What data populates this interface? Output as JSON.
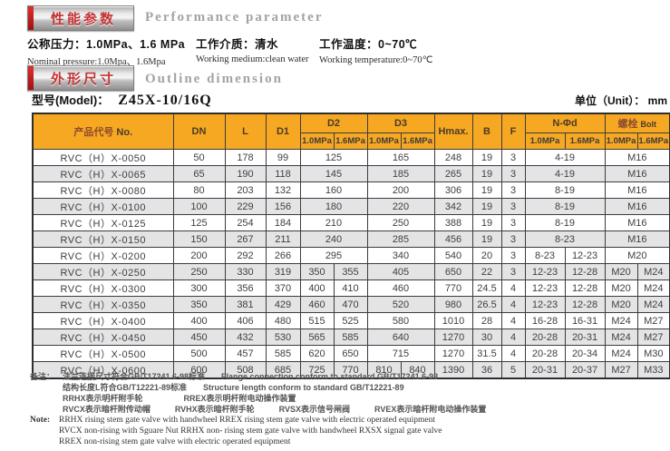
{
  "performance": {
    "badge_cn": "性能参数",
    "title_en": "Performance parameter",
    "params": [
      {
        "cn": "公称压力：1.0MPa、1.6 MPa",
        "en": "Nominal pressure:1.0Mpa、1.6Mpa"
      },
      {
        "cn": "工作介质：清水",
        "en": "Working medium:clean water"
      },
      {
        "cn": "工作温度：0~70℃",
        "en": "Working temperature:0~70℃"
      }
    ]
  },
  "outline": {
    "badge_cn": "外形尺寸",
    "title_en": "Outline dimension",
    "model_label": "型号(Model)：",
    "model_value": "Z45X-10/16Q",
    "unit_label": "单位（Unit）： mm"
  },
  "table": {
    "headers": {
      "no_cn": "产品代号",
      "no_en": "No.",
      "dn": "DN",
      "l": "L",
      "d1": "D1",
      "d2": "D2",
      "d3": "D3",
      "hmax": "Hmax.",
      "b": "B",
      "f": "F",
      "nd": "N-Φd",
      "bolt_cn": "螺栓",
      "bolt_en": "Bolt",
      "p10": "1.0MPa",
      "p16": "1.6MPa"
    },
    "rows": [
      {
        "no": "RVC（H）X-0050",
        "dn": "50",
        "l": "178",
        "d1": "99",
        "d2": [
          "125"
        ],
        "d3": [
          "165"
        ],
        "hmax": "248",
        "b": "19",
        "f": "3",
        "nd": [
          "4-19"
        ],
        "bolt": [
          "M16"
        ]
      },
      {
        "no": "RVC（H）X-0065",
        "dn": "65",
        "l": "190",
        "d1": "118",
        "d2": [
          "145"
        ],
        "d3": [
          "185"
        ],
        "hmax": "265",
        "b": "19",
        "f": "3",
        "nd": [
          "4-19"
        ],
        "bolt": [
          "M16"
        ]
      },
      {
        "no": "RVC（H）X-0080",
        "dn": "80",
        "l": "203",
        "d1": "132",
        "d2": [
          "160"
        ],
        "d3": [
          "200"
        ],
        "hmax": "306",
        "b": "19",
        "f": "3",
        "nd": [
          "8-19"
        ],
        "bolt": [
          "M16"
        ]
      },
      {
        "no": "RVC（H）X-0100",
        "dn": "100",
        "l": "229",
        "d1": "156",
        "d2": [
          "180"
        ],
        "d3": [
          "220"
        ],
        "hmax": "342",
        "b": "19",
        "f": "3",
        "nd": [
          "8-19"
        ],
        "bolt": [
          "M16"
        ]
      },
      {
        "no": "RVC（H）X-0125",
        "dn": "125",
        "l": "254",
        "d1": "184",
        "d2": [
          "210"
        ],
        "d3": [
          "250"
        ],
        "hmax": "388",
        "b": "19",
        "f": "3",
        "nd": [
          "8-19"
        ],
        "bolt": [
          "M16"
        ]
      },
      {
        "no": "RVC（H）X-0150",
        "dn": "150",
        "l": "267",
        "d1": "211",
        "d2": [
          "240"
        ],
        "d3": [
          "285"
        ],
        "hmax": "456",
        "b": "19",
        "f": "3",
        "nd": [
          "8-23"
        ],
        "bolt": [
          "M16"
        ]
      },
      {
        "no": "RVC（H）X-0200",
        "dn": "200",
        "l": "292",
        "d1": "266",
        "d2": [
          "295"
        ],
        "d3": [
          "340"
        ],
        "hmax": "540",
        "b": "20",
        "f": "3",
        "nd": [
          "8-23",
          "12-23"
        ],
        "bolt": [
          "M20"
        ]
      },
      {
        "no": "RVC（H）X-0250",
        "dn": "250",
        "l": "330",
        "d1": "319",
        "d2": [
          "350",
          "355"
        ],
        "d3": [
          "405"
        ],
        "hmax": "650",
        "b": "22",
        "f": "3",
        "nd": [
          "12-23",
          "12-28"
        ],
        "bolt": [
          "M20",
          "M24"
        ]
      },
      {
        "no": "RVC（H）X-0300",
        "dn": "300",
        "l": "356",
        "d1": "370",
        "d2": [
          "400",
          "410"
        ],
        "d3": [
          "460"
        ],
        "hmax": "770",
        "b": "24.5",
        "f": "4",
        "nd": [
          "12-23",
          "12-28"
        ],
        "bolt": [
          "M20",
          "M24"
        ]
      },
      {
        "no": "RVC（H）X-0350",
        "dn": "350",
        "l": "381",
        "d1": "429",
        "d2": [
          "460",
          "470"
        ],
        "d3": [
          "520"
        ],
        "hmax": "980",
        "b": "26.5",
        "f": "4",
        "nd": [
          "12-23",
          "12-28"
        ],
        "bolt": [
          "M20",
          "M24"
        ]
      },
      {
        "no": "RVC（H）X-0400",
        "dn": "400",
        "l": "406",
        "d1": "480",
        "d2": [
          "515",
          "525"
        ],
        "d3": [
          "580"
        ],
        "hmax": "1010",
        "b": "28",
        "f": "4",
        "nd": [
          "16-28",
          "16-31"
        ],
        "bolt": [
          "M24",
          "M27"
        ]
      },
      {
        "no": "RVC（H）X-0450",
        "dn": "450",
        "l": "432",
        "d1": "530",
        "d2": [
          "565",
          "585"
        ],
        "d3": [
          "640"
        ],
        "hmax": "1270",
        "b": "30",
        "f": "4",
        "nd": [
          "20-28",
          "20-31"
        ],
        "bolt": [
          "M24",
          "M27"
        ]
      },
      {
        "no": "RVC（H）X-0500",
        "dn": "500",
        "l": "457",
        "d1": "585",
        "d2": [
          "620",
          "650"
        ],
        "d3": [
          "715"
        ],
        "hmax": "1270",
        "b": "31.5",
        "f": "4",
        "nd": [
          "20-28",
          "20-34"
        ],
        "bolt": [
          "M24",
          "M30"
        ]
      },
      {
        "no": "RVC（H）X-0600",
        "dn": "600",
        "l": "508",
        "d1": "685",
        "d2": [
          "725",
          "770"
        ],
        "d3": [
          "810",
          "840"
        ],
        "hmax": "1390",
        "b": "36",
        "f": "5",
        "nd": [
          "20-31",
          "20-37"
        ],
        "bolt": [
          "M27",
          "M33"
        ]
      }
    ]
  },
  "notes": {
    "label_cn": "备注：",
    "label_en": "Note:",
    "cn_lines": [
      "法兰连接尺寸符合GB/T17241.6-98标准　　Flange connection conform to standard GB/T17241.6-98",
      "结构长度L符合GB/T12221-89标准　　Structure length conform to standard GB/T12221-89",
      "RRHX表示明杆附手轮　　　　　RREX表示明杆附电动操作装置",
      "RVCX表示暗杆附传动帽　　　RVHX表示暗杆附手轮　　　RVSX表示信号闸阀　　　RVEX表示暗杆附电动操作装置"
    ],
    "en_lines": [
      "RRHX  rising stem gate valve with handwheel    RREX  rising stem gate valve with electric operated equipment",
      "RVCX  non-rising with Sguare Nut    RRHX non- rising stem gate valve with handwheel    RXSX  signal gate valve",
      "RREX non-rising stem gate valve with electric operated equipment"
    ],
    "colors": {
      "badge_red": "#c23436",
      "header_orange": "#F7A823"
    }
  }
}
